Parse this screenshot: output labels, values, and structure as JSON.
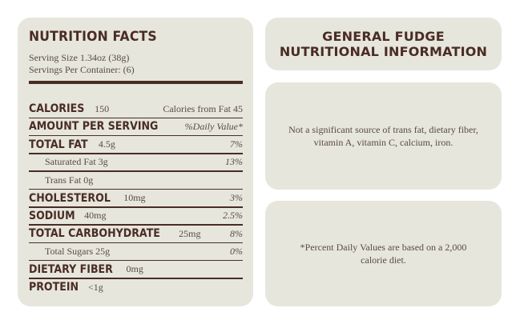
{
  "nutrition_facts": {
    "title": "NUTRITION FACTS",
    "serving_size": "Serving Size 1.34oz (38g)",
    "servings_per_container": "Servings Per Container: (6)",
    "rows": [
      {
        "label": "CALORIES",
        "amount": "150",
        "value": "Calories from Fat 45"
      },
      {
        "label": "AMOUNT PER SERVING",
        "value": "%Daily Value*"
      },
      {
        "label": "TOTAL FAT",
        "amount": "4.5g",
        "value": "7%"
      },
      {
        "sub_label": "Saturated Fat 3g",
        "value": "13%"
      },
      {
        "sub_label": "Trans Fat 0g"
      },
      {
        "label": "CHOLESTEROL",
        "amount": "10mg",
        "value": "3%"
      },
      {
        "label": "SODIUM",
        "amount": "40mg",
        "value": "2.5%"
      },
      {
        "label": "TOTAL CARBOHYDRATE",
        "amount": "25mg",
        "value": "8%"
      },
      {
        "sub_label": "Total Sugars 25g",
        "value": "0%"
      },
      {
        "label": "DIETARY FIBER",
        "amount": "0mg"
      },
      {
        "label": "PROTEIN",
        "amount": "<1g"
      }
    ]
  },
  "general": {
    "title_line1": "GENERAL FUDGE",
    "title_line2": "NUTRITIONAL INFORMATION"
  },
  "note": "Not a significant source of trans fat, dietary fiber, vitamin A, vitamin C, calcium, iron.",
  "footnote": "*Percent Daily Values are based on a 2,000 calorie diet."
}
